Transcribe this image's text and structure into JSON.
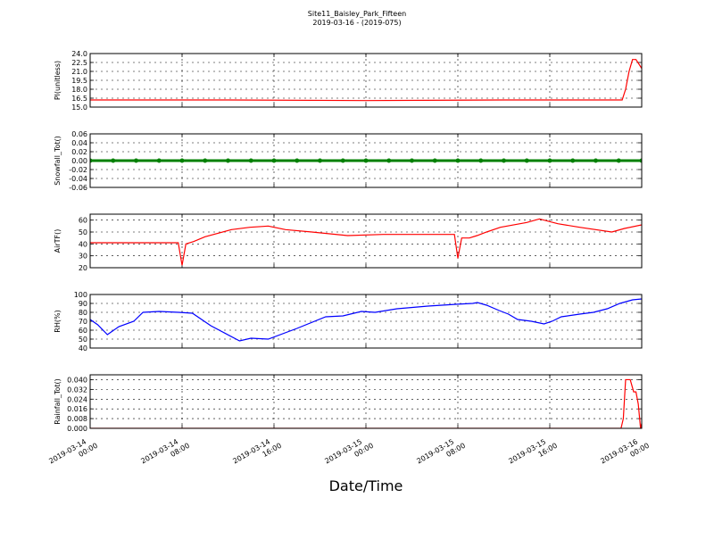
{
  "title": "Site11_Baisley_Park_Fifteen",
  "subtitle": "2019-03-16 - (2019-075)",
  "xlabel": "Date/Time",
  "chart_data": [
    {
      "type": "line",
      "ylabel": "Pl(unitless)",
      "color": "#ff0000",
      "x": [
        "2019-03-14 00:00",
        "2019-03-14 12:00",
        "2019-03-15 00:00",
        "2019-03-15 12:00",
        "2019-03-15 22:18",
        "2019-03-15 22:36",
        "2019-03-15 22:54",
        "2019-03-15 23:12",
        "2019-03-15 23:30",
        "2019-03-16 00:00"
      ],
      "values": [
        16.2,
        16.2,
        16.1,
        16.2,
        16.2,
        18.0,
        21.0,
        23.0,
        23.0,
        21.5
      ],
      "xlim": [
        "2019-03-14 00:00",
        "2019-03-16 00:00"
      ],
      "xticks": [
        "2019-03-14 00:00",
        "2019-03-14 08:00",
        "2019-03-14 16:00",
        "2019-03-15 00:00",
        "2019-03-15 08:00",
        "2019-03-15 16:00",
        "2019-03-16 00:00"
      ],
      "ylim": [
        15,
        24
      ],
      "yticks": [
        {
          "value": 15,
          "label": "15.0"
        },
        16.5,
        {
          "value": 18,
          "label": "18.0"
        },
        19.5,
        {
          "value": 21,
          "label": "21.0"
        },
        22.5,
        {
          "value": 24,
          "label": "24.0"
        }
      ],
      "grid": true
    },
    {
      "type": "line",
      "ylabel": "Snowfall_Tot()",
      "color": "#008000",
      "marker": "o",
      "x": [
        "2019-03-14 00:00",
        "2019-03-14 02:00",
        "2019-03-14 04:00",
        "2019-03-14 06:00",
        "2019-03-14 08:00",
        "2019-03-14 10:00",
        "2019-03-14 12:00",
        "2019-03-14 14:00",
        "2019-03-14 16:00",
        "2019-03-14 18:00",
        "2019-03-14 20:00",
        "2019-03-14 22:00",
        "2019-03-15 00:00",
        "2019-03-15 02:00",
        "2019-03-15 04:00",
        "2019-03-15 06:00",
        "2019-03-15 08:00",
        "2019-03-15 10:00",
        "2019-03-15 12:00",
        "2019-03-15 14:00",
        "2019-03-15 16:00",
        "2019-03-15 18:00",
        "2019-03-15 20:00",
        "2019-03-15 22:00",
        "2019-03-16 00:00"
      ],
      "values": [
        0,
        0,
        0,
        0,
        0,
        0,
        0,
        0,
        0,
        0,
        0,
        0,
        0,
        0,
        0,
        0,
        0,
        0,
        0,
        0,
        0,
        0,
        0,
        0,
        0
      ],
      "xlim": [
        "2019-03-14 00:00",
        "2019-03-16 00:00"
      ],
      "xticks": [
        "2019-03-14 00:00",
        "2019-03-14 08:00",
        "2019-03-14 16:00",
        "2019-03-15 00:00",
        "2019-03-15 08:00",
        "2019-03-15 16:00",
        "2019-03-16 00:00"
      ],
      "ylim": [
        -0.06,
        0.06
      ],
      "yticks": [
        -0.06,
        -0.04,
        -0.02,
        {
          "value": 0,
          "label": "0.00"
        },
        0.02,
        0.04,
        0.06
      ],
      "grid": true
    },
    {
      "type": "line",
      "ylabel": "AirTF()",
      "color": "#ff0000",
      "x": [
        "2019-03-14 00:00",
        "2019-03-14 03:00",
        "2019-03-14 06:00",
        "2019-03-14 07:40",
        "2019-03-14 08:00",
        "2019-03-14 08:20",
        "2019-03-14 09:00",
        "2019-03-14 10:00",
        "2019-03-14 12:18",
        "2019-03-14 13:54",
        "2019-03-14 15:30",
        "2019-03-14 17:00",
        "2019-03-14 19:18",
        "2019-03-14 22:24",
        "2019-03-15 01:30",
        "2019-03-15 07:42",
        "2019-03-15 08:00",
        "2019-03-15 08:20",
        "2019-03-15 09:00",
        "2019-03-15 09:40",
        "2019-03-15 10:30",
        "2019-03-15 11:42",
        "2019-03-15 14:00",
        "2019-03-15 15:06",
        "2019-03-15 16:42",
        "2019-03-15 18:36",
        "2019-03-15 21:24",
        "2019-03-15 22:30",
        "2019-03-16 00:00"
      ],
      "values": [
        41,
        41,
        41,
        41,
        22,
        40,
        42,
        46,
        52,
        54,
        55,
        52,
        50,
        47,
        48,
        48,
        28,
        45,
        45,
        47,
        50,
        54,
        58,
        61,
        57,
        54,
        50,
        53,
        56
      ],
      "xlim": [
        "2019-03-14 00:00",
        "2019-03-16 00:00"
      ],
      "xticks": [
        "2019-03-14 00:00",
        "2019-03-14 08:00",
        "2019-03-14 16:00",
        "2019-03-15 00:00",
        "2019-03-15 08:00",
        "2019-03-15 16:00",
        "2019-03-16 00:00"
      ],
      "ylim": [
        20,
        65
      ],
      "yticks": [
        20,
        30,
        40,
        50,
        60
      ],
      "grid": true
    },
    {
      "type": "line",
      "ylabel": "RH(%)",
      "color": "#0000ff",
      "x": [
        "2019-03-14 00:00",
        "2019-03-14 00:40",
        "2019-03-14 01:30",
        "2019-03-14 02:30",
        "2019-03-14 03:48",
        "2019-03-14 04:36",
        "2019-03-14 06:00",
        "2019-03-14 07:42",
        "2019-03-14 08:54",
        "2019-03-14 10:30",
        "2019-03-14 13:00",
        "2019-03-14 14:00",
        "2019-03-14 15:30",
        "2019-03-14 18:00",
        "2019-03-14 20:30",
        "2019-03-14 22:00",
        "2019-03-14 23:36",
        "2019-03-15 00:48",
        "2019-03-15 02:42",
        "2019-03-15 05:24",
        "2019-03-15 07:48",
        "2019-03-15 09:18",
        "2019-03-15 09:42",
        "2019-03-15 10:30",
        "2019-03-15 11:36",
        "2019-03-15 12:24",
        "2019-03-15 13:12",
        "2019-03-15 14:24",
        "2019-03-15 15:30",
        "2019-03-15 16:12",
        "2019-03-15 17:00",
        "2019-03-15 18:36",
        "2019-03-15 19:48",
        "2019-03-15 21:00",
        "2019-03-15 22:06",
        "2019-03-15 23:12",
        "2019-03-16 00:00"
      ],
      "values": [
        72,
        66,
        55,
        64,
        70,
        80,
        81,
        80,
        79,
        65,
        48,
        51,
        50,
        62,
        75,
        76,
        81,
        80,
        84,
        87,
        89,
        90,
        91,
        88,
        82,
        78,
        72,
        70,
        67,
        70,
        75,
        78,
        80,
        84,
        90,
        94,
        95
      ],
      "xlim": [
        "2019-03-14 00:00",
        "2019-03-16 00:00"
      ],
      "xticks": [
        "2019-03-14 00:00",
        "2019-03-14 08:00",
        "2019-03-14 16:00",
        "2019-03-15 00:00",
        "2019-03-15 08:00",
        "2019-03-15 16:00",
        "2019-03-16 00:00"
      ],
      "ylim": [
        40,
        100
      ],
      "yticks": [
        40,
        50,
        60,
        70,
        80,
        90,
        100
      ],
      "grid": true
    },
    {
      "type": "line",
      "ylabel": "Rainfall_Tot()",
      "color": "#ff0000",
      "x": [
        "2019-03-14 00:00",
        "2019-03-15 12:00",
        "2019-03-15 22:12",
        "2019-03-15 22:24",
        "2019-03-15 22:36",
        "2019-03-15 23:00",
        "2019-03-15 23:18",
        "2019-03-15 23:30",
        "2019-03-15 23:42",
        "2019-03-15 23:54",
        "2019-03-16 00:00"
      ],
      "values": [
        0,
        0,
        0,
        0.008,
        0.04,
        0.04,
        0.03,
        0.03,
        0.02,
        0,
        0.004
      ],
      "xlim": [
        "2019-03-14 00:00",
        "2019-03-16 00:00"
      ],
      "xticks": [
        "2019-03-14 00:00",
        "2019-03-14 08:00",
        "2019-03-14 16:00",
        "2019-03-15 00:00",
        "2019-03-15 08:00",
        "2019-03-15 16:00",
        "2019-03-16 00:00"
      ],
      "ylim": [
        0,
        0.044
      ],
      "yticks": [
        {
          "value": 0,
          "label": "0.000"
        },
        0.008,
        0.016,
        0.024,
        0.032,
        {
          "value": 0.04,
          "label": "0.040"
        }
      ],
      "grid": true
    }
  ]
}
